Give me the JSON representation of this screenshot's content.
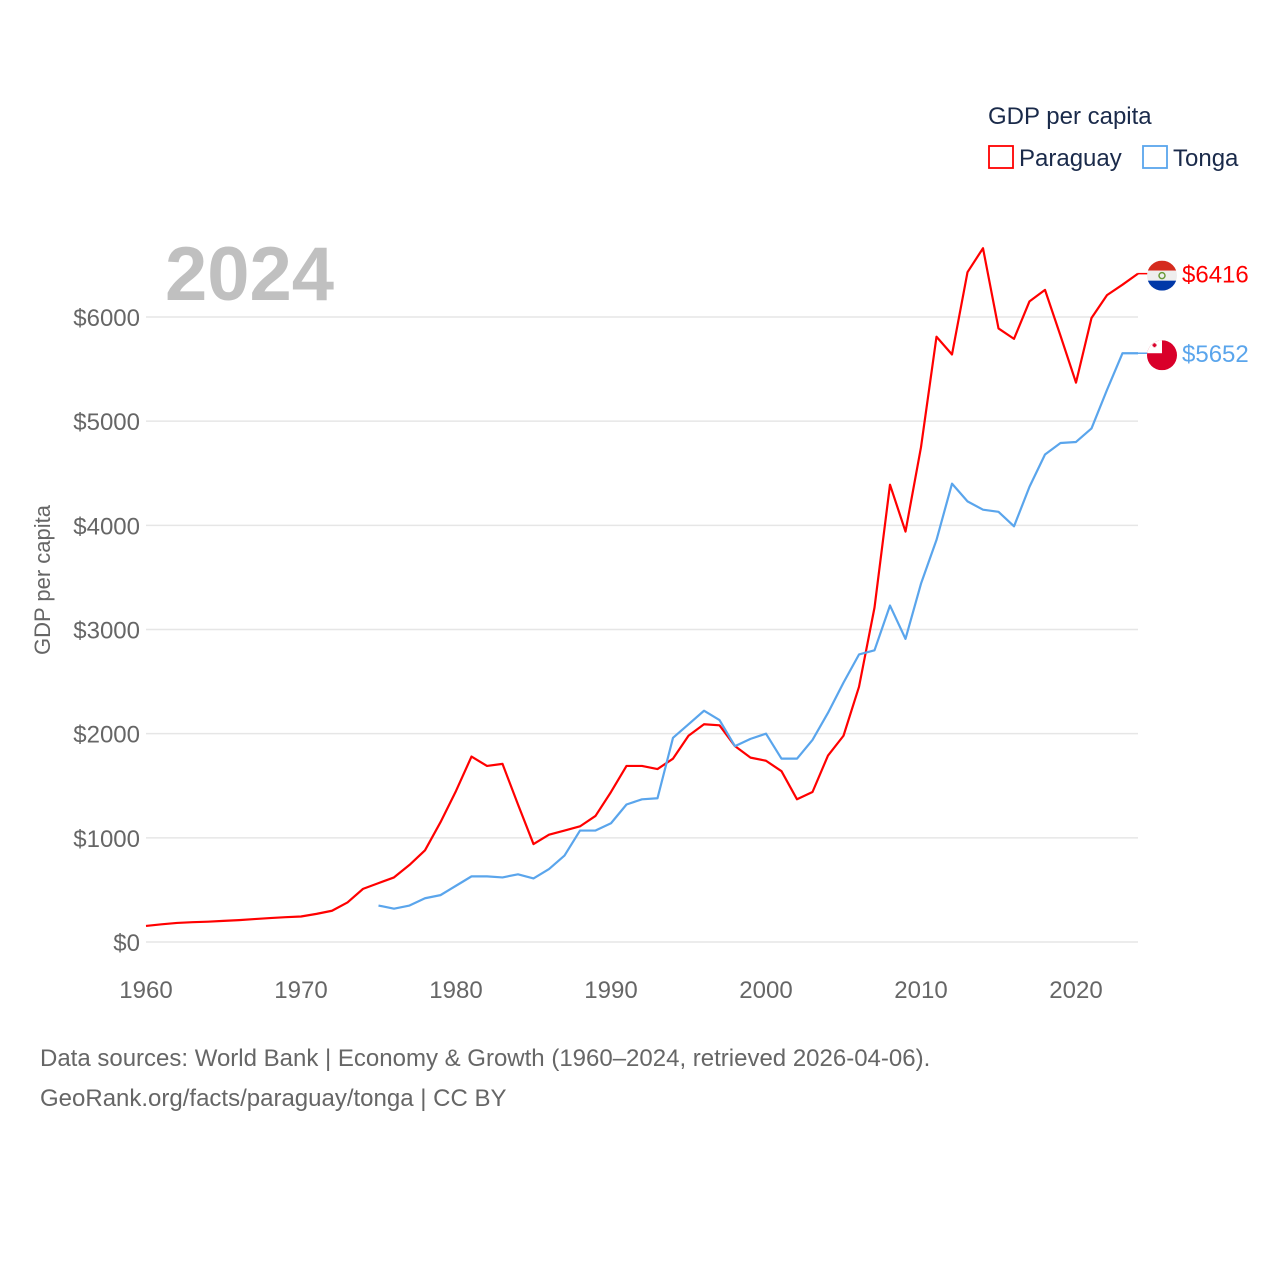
{
  "chart_data": {
    "type": "line",
    "title": "GDP per capita",
    "ylabel": "GDP per capita",
    "xlabel": "",
    "year_label": "2024",
    "xlim": [
      1960,
      2024
    ],
    "ylim": [
      0,
      6600
    ],
    "x_ticks": [
      1960,
      1970,
      1980,
      1990,
      2000,
      2010,
      2020
    ],
    "x_tick_labels": [
      "1960",
      "1970",
      "1980",
      "1990",
      "2000",
      "2010",
      "2020"
    ],
    "y_ticks": [
      0,
      1000,
      2000,
      3000,
      4000,
      5000,
      6000
    ],
    "y_tick_labels": [
      "$0",
      "$1000",
      "$2000",
      "$3000",
      "$4000",
      "$5000",
      "$6000"
    ],
    "grid": true,
    "legend_position": "top-right",
    "series": [
      {
        "name": "Paraguay",
        "color": "#ff0000",
        "end_label": "$6416",
        "start_year": 1960,
        "values": [
          154,
          170,
          183,
          190,
          195,
          203,
          210,
          220,
          230,
          238,
          245,
          270,
          300,
          380,
          510,
          565,
          620,
          740,
          880,
          1150,
          1450,
          1780,
          1690,
          1710,
          1320,
          940,
          1030,
          1070,
          1110,
          1210,
          1440,
          1690,
          1690,
          1660,
          1760,
          1980,
          2090,
          2080,
          1880,
          1770,
          1740,
          1640,
          1370,
          1440,
          1790,
          1980,
          2450,
          3210,
          4390,
          3940,
          4750,
          5810,
          5640,
          6430,
          6660,
          5890,
          5790,
          6150,
          6260,
          5820,
          5370,
          5990,
          6210,
          6310,
          6416
        ]
      },
      {
        "name": "Tonga",
        "color": "#5aa5ec",
        "end_label": "$5652",
        "start_year": 1975,
        "values": [
          350,
          320,
          350,
          420,
          450,
          540,
          630,
          630,
          620,
          650,
          610,
          700,
          830,
          1070,
          1070,
          1140,
          1320,
          1370,
          1380,
          1960,
          2090,
          2220,
          2130,
          1880,
          1950,
          2000,
          1760,
          1760,
          1940,
          2200,
          2490,
          2760,
          2800,
          3230,
          2910,
          3440,
          3860,
          4400,
          4230,
          4150,
          4130,
          3990,
          4370,
          4680,
          4790,
          4800,
          4930,
          5300,
          5652,
          5652
        ]
      }
    ]
  },
  "footer": {
    "line1": "Data sources: World Bank | Economy & Growth (1960–2024, retrieved 2026-04-06).",
    "line2": "GeoRank.org/facts/paraguay/tonga | CC BY"
  }
}
